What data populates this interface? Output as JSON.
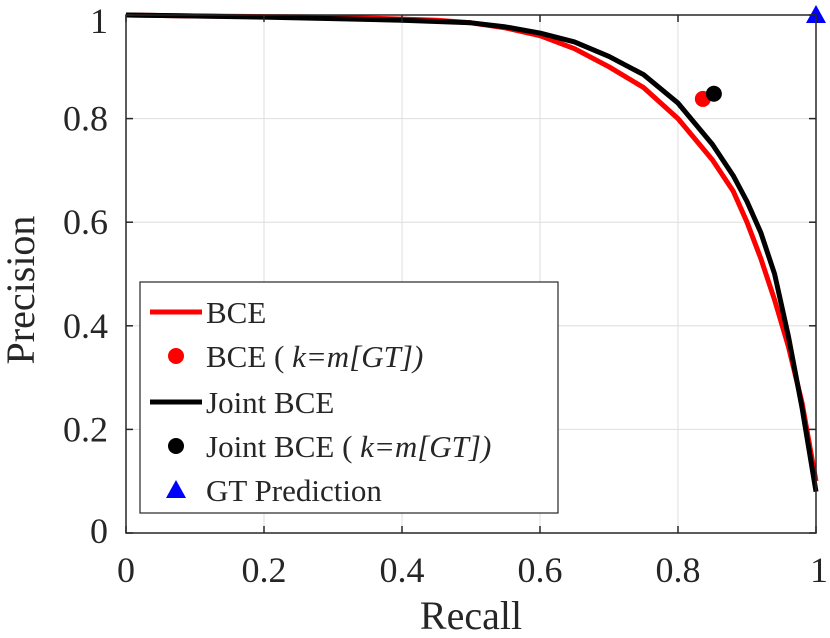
{
  "chart_data": {
    "type": "line",
    "title": "",
    "xlabel": "Recall",
    "ylabel": "Precision",
    "xlim": [
      0,
      1
    ],
    "ylim": [
      0,
      1
    ],
    "xticks": [
      "0",
      "0.2",
      "0.4",
      "0.6",
      "0.8",
      "1"
    ],
    "yticks": [
      "0",
      "0.2",
      "0.4",
      "0.6",
      "0.8",
      "1"
    ],
    "grid": true,
    "legend_position": "bottom-left",
    "series": [
      {
        "name": "BCE",
        "kind": "line",
        "color": "#ff0000",
        "x": [
          0,
          0.1,
          0.2,
          0.3,
          0.4,
          0.45,
          0.5,
          0.55,
          0.6,
          0.65,
          0.7,
          0.75,
          0.8,
          0.85,
          0.88,
          0.9,
          0.92,
          0.94,
          0.96,
          0.98,
          1.0
        ],
        "y": [
          1.0,
          0.998,
          0.997,
          0.996,
          0.992,
          0.99,
          0.985,
          0.975,
          0.96,
          0.935,
          0.9,
          0.86,
          0.8,
          0.72,
          0.66,
          0.6,
          0.53,
          0.45,
          0.36,
          0.25,
          0.1
        ]
      },
      {
        "name": "BCE ( k=m[GT])",
        "kind": "marker",
        "marker": "circle",
        "color": "#ff0000",
        "x": [
          0.836
        ],
        "y": [
          0.838
        ]
      },
      {
        "name": "Joint BCE",
        "kind": "line",
        "color": "#000000",
        "x": [
          0,
          0.1,
          0.2,
          0.3,
          0.4,
          0.5,
          0.55,
          0.6,
          0.65,
          0.7,
          0.75,
          0.8,
          0.85,
          0.88,
          0.9,
          0.92,
          0.94,
          0.96,
          0.98,
          1.0
        ],
        "y": [
          1.0,
          0.998,
          0.996,
          0.993,
          0.99,
          0.985,
          0.977,
          0.965,
          0.948,
          0.92,
          0.885,
          0.83,
          0.75,
          0.69,
          0.64,
          0.58,
          0.5,
          0.38,
          0.24,
          0.08
        ]
      },
      {
        "name": "Joint BCE ( k=m[GT])",
        "kind": "marker",
        "marker": "circle",
        "color": "#000000",
        "x": [
          0.852
        ],
        "y": [
          0.848
        ]
      },
      {
        "name": "GT Prediction",
        "kind": "marker",
        "marker": "triangle",
        "color": "#0000ff",
        "x": [
          1.0
        ],
        "y": [
          1.0
        ]
      }
    ],
    "legend": [
      {
        "label": "BCE",
        "italic": ""
      },
      {
        "label": "BCE ( ",
        "italic": "k=m[GT])"
      },
      {
        "label": "Joint BCE",
        "italic": ""
      },
      {
        "label": "Joint BCE ( ",
        "italic": "k=m[GT])"
      },
      {
        "label": "GT Prediction",
        "italic": ""
      }
    ]
  }
}
